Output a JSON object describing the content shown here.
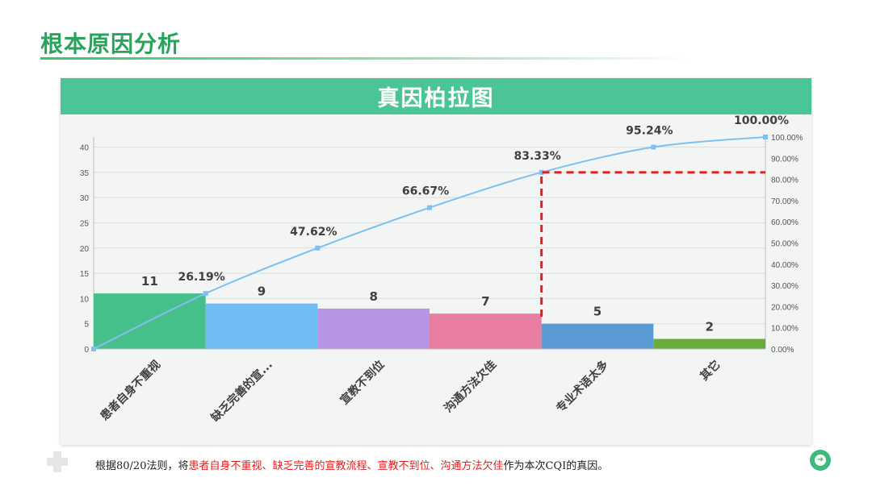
{
  "page": {
    "title": "根本原因分析",
    "card_title": "真因柏拉图",
    "footer_prefix": "根据80/20法则，将",
    "footer_highlight": "患者自身不重视、缺乏完善的宣教流程、宣教不到位、沟通方法欠佳",
    "footer_suffix": "作为本次CQI的真因。"
  },
  "chart_data": {
    "type": "bar",
    "title": "真因柏拉图",
    "categories": [
      "患者自身不重视",
      "缺乏完善的宣...",
      "宣教不到位",
      "沟通方法欠佳",
      "专业术语太多",
      "其它"
    ],
    "values": [
      11,
      9,
      8,
      7,
      5,
      2
    ],
    "value_labels": [
      "11",
      "9",
      "8",
      "7",
      "5",
      "2"
    ],
    "bar_colors": [
      "#46c08a",
      "#6fbdf4",
      "#b894e6",
      "#e77da2",
      "#5b9bd5",
      "#6aab3c"
    ],
    "cumulative": [
      0,
      26.19,
      47.62,
      66.67,
      83.33,
      95.24,
      100.0
    ],
    "cumulative_labels": [
      "26.19%",
      "47.62%",
      "66.67%",
      "83.33%",
      "95.24%",
      "100.00%"
    ],
    "line_color": "#7fc0ef",
    "cutoff_percent": 83.33,
    "cutoff_color": "#e02020",
    "ylim_left": [
      0,
      42
    ],
    "left_ticks": [
      "0",
      "5",
      "10",
      "15",
      "20",
      "25",
      "30",
      "35",
      "40"
    ],
    "ylim_right": [
      0,
      100
    ],
    "right_ticks": [
      "0.00%",
      "10.00%",
      "20.00%",
      "30.00%",
      "40.00%",
      "50.00%",
      "60.00%",
      "70.00%",
      "80.00%",
      "90.00%",
      "100.00%"
    ],
    "grid": true
  }
}
